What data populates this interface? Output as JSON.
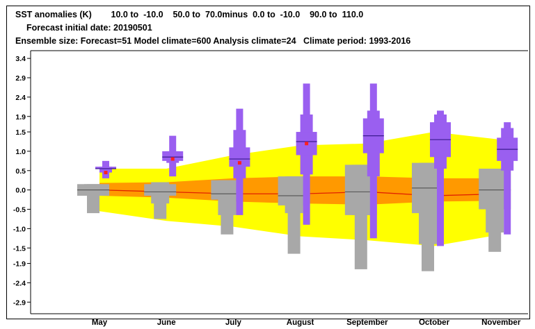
{
  "header": {
    "line1": "SST anomalies (K)        10.0 to  -10.0    50.0 to  70.0minus  0.0 to  -10.0    90.0 to  110.0",
    "line2": "Forecast initial date: 20190501",
    "line3": "Ensemble size: Forecast=51 Model climate=600 Analysis climate=24   Climate period: 1993-2016"
  },
  "chart_data": {
    "type": "box",
    "title": "SST anomalies (K)",
    "categories": [
      "May",
      "June",
      "July",
      "August",
      "September",
      "October",
      "November"
    ],
    "y_ticks": [
      3.4,
      2.9,
      2.4,
      1.9,
      1.5,
      1.0,
      0.5,
      0.0,
      -0.5,
      -1.0,
      -1.5,
      -1.9,
      -2.4,
      -2.9
    ],
    "ylim": [
      -3.2,
      3.6
    ],
    "colors": {
      "forecast": "#9a5ff0",
      "forecast_median": "#3a1a90",
      "climate": "#a8a8a8",
      "climate_median": "#5a5a5a",
      "band_outer": "#ffff00",
      "band_inner": "#ff9900",
      "median_line": "#e02000",
      "analysis_dot": "#ff2020"
    },
    "climate_band_outer": {
      "upper": [
        0.55,
        0.55,
        0.9,
        1.15,
        1.2,
        1.5,
        1.3
      ],
      "lower": [
        -0.55,
        -0.8,
        -0.95,
        -1.2,
        -1.3,
        -1.45,
        -1.15
      ]
    },
    "climate_band_inner": {
      "upper": [
        0.18,
        0.2,
        0.3,
        0.35,
        0.35,
        0.3,
        0.3
      ],
      "lower": [
        -0.15,
        -0.2,
        -0.3,
        -0.35,
        -0.38,
        -0.3,
        -0.28
      ]
    },
    "climate_median_line": [
      0.0,
      -0.05,
      -0.1,
      -0.1,
      -0.05,
      -0.15,
      -0.1
    ],
    "model_climate_boxes": [
      {
        "min": -0.6,
        "p10": -0.15,
        "q1": -0.15,
        "median": 0.0,
        "q3": 0.15,
        "p90": 0.15,
        "max": 0.15
      },
      {
        "min": -0.75,
        "p10": -0.35,
        "q1": -0.15,
        "median": -0.05,
        "q3": 0.15,
        "p90": 0.2,
        "max": 0.2
      },
      {
        "min": -1.15,
        "p10": -0.65,
        "q1": -0.25,
        "median": -0.1,
        "q3": 0.25,
        "p90": 0.25,
        "max": 0.25
      },
      {
        "min": -1.65,
        "p10": -0.6,
        "q1": -0.4,
        "median": -0.15,
        "q3": 0.35,
        "p90": 0.35,
        "max": 0.35
      },
      {
        "min": -2.05,
        "p10": -0.65,
        "q1": -0.65,
        "median": -0.05,
        "q3": 0.65,
        "p90": 0.65,
        "max": 0.65
      },
      {
        "min": -2.1,
        "p10": -1.4,
        "q1": -0.6,
        "median": 0.05,
        "q3": 0.7,
        "p90": 0.7,
        "max": 0.7
      },
      {
        "min": -1.6,
        "p10": -1.1,
        "q1": -0.5,
        "median": 0.0,
        "q3": 0.55,
        "p90": 0.55,
        "max": 0.55
      }
    ],
    "forecast_boxes": [
      {
        "min": 0.3,
        "p10": 0.45,
        "q1": 0.55,
        "median": 0.55,
        "q3": 0.6,
        "p90": 0.6,
        "max": 0.75
      },
      {
        "min": 0.35,
        "p10": 0.7,
        "q1": 0.75,
        "median": 0.85,
        "q3": 1.0,
        "p90": 1.0,
        "max": 1.4
      },
      {
        "min": -0.65,
        "p10": 0.3,
        "q1": 0.6,
        "median": 0.8,
        "q3": 1.1,
        "p90": 1.55,
        "max": 2.1
      },
      {
        "min": -0.9,
        "p10": 0.4,
        "q1": 0.9,
        "median": 1.25,
        "q3": 1.5,
        "p90": 1.95,
        "max": 2.75
      },
      {
        "min": -1.25,
        "p10": 0.35,
        "q1": 0.95,
        "median": 1.4,
        "q3": 1.85,
        "p90": 2.05,
        "max": 2.75
      },
      {
        "min": -1.45,
        "p10": 0.55,
        "q1": 0.85,
        "median": 1.3,
        "q3": 1.75,
        "p90": 1.95,
        "max": 2.05
      },
      {
        "min": -1.15,
        "p10": 0.5,
        "q1": 0.75,
        "median": 1.05,
        "q3": 1.35,
        "p90": 1.6,
        "max": 1.75
      }
    ],
    "analysis_dots": [
      0.45,
      0.8,
      0.7,
      1.2,
      null,
      null,
      null
    ]
  }
}
